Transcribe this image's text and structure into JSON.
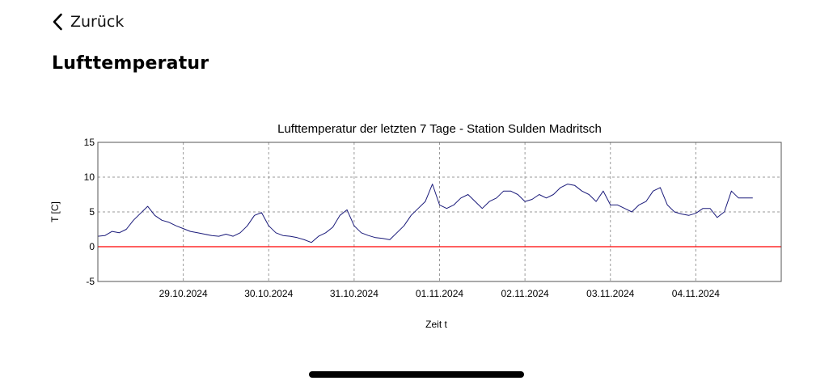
{
  "nav": {
    "back_label": "Zurück"
  },
  "page": {
    "title": "Lufttemperatur"
  },
  "icons": {
    "back": "chevron-left-icon"
  },
  "colors": {
    "series": "#1a1a7a",
    "reference_line": "#ff0000",
    "grid": "#9a9a9a"
  },
  "chart_data": {
    "type": "line",
    "title": "Lufttemperatur der letzten 7 Tage - Station Sulden Madritsch",
    "xlabel": "Zeit t",
    "ylabel": "T [C]",
    "ylim": [
      -5,
      15
    ],
    "yticks": [
      -5,
      0,
      5,
      10,
      15
    ],
    "xlim": [
      "2024-10-28T00:00",
      "2024-11-05T00:00"
    ],
    "xticks": [
      "29.10.2024",
      "30.10.2024",
      "31.10.2024",
      "01.11.2024",
      "02.11.2024",
      "03.11.2024",
      "04.11.2024"
    ],
    "grid": true,
    "reference_line": {
      "y": 0
    },
    "series": [
      {
        "x": [
          "2024-10-28T00:00",
          "2024-10-28T02:00",
          "2024-10-28T04:00",
          "2024-10-28T06:00",
          "2024-10-28T08:00",
          "2024-10-28T10:00",
          "2024-10-28T12:00",
          "2024-10-28T14:00",
          "2024-10-28T16:00",
          "2024-10-28T18:00",
          "2024-10-28T20:00",
          "2024-10-28T22:00",
          "2024-10-29T00:00",
          "2024-10-29T02:00",
          "2024-10-29T04:00",
          "2024-10-29T06:00",
          "2024-10-29T08:00",
          "2024-10-29T10:00",
          "2024-10-29T12:00",
          "2024-10-29T14:00",
          "2024-10-29T16:00",
          "2024-10-29T18:00",
          "2024-10-29T20:00",
          "2024-10-29T22:00",
          "2024-10-30T00:00",
          "2024-10-30T02:00",
          "2024-10-30T04:00",
          "2024-10-30T06:00",
          "2024-10-30T08:00",
          "2024-10-30T10:00",
          "2024-10-30T12:00",
          "2024-10-30T14:00",
          "2024-10-30T16:00",
          "2024-10-30T18:00",
          "2024-10-30T20:00",
          "2024-10-30T22:00",
          "2024-10-31T00:00",
          "2024-10-31T02:00",
          "2024-10-31T04:00",
          "2024-10-31T06:00",
          "2024-10-31T08:00",
          "2024-10-31T10:00",
          "2024-10-31T12:00",
          "2024-10-31T14:00",
          "2024-10-31T16:00",
          "2024-10-31T18:00",
          "2024-10-31T20:00",
          "2024-10-31T22:00",
          "2024-11-01T00:00",
          "2024-11-01T02:00",
          "2024-11-01T04:00",
          "2024-11-01T06:00",
          "2024-11-01T08:00",
          "2024-11-01T10:00",
          "2024-11-01T12:00",
          "2024-11-01T14:00",
          "2024-11-01T16:00",
          "2024-11-01T18:00",
          "2024-11-01T20:00",
          "2024-11-01T22:00",
          "2024-11-02T00:00",
          "2024-11-02T02:00",
          "2024-11-02T04:00",
          "2024-11-02T06:00",
          "2024-11-02T08:00",
          "2024-11-02T10:00",
          "2024-11-02T12:00",
          "2024-11-02T14:00",
          "2024-11-02T16:00",
          "2024-11-02T18:00",
          "2024-11-02T20:00",
          "2024-11-02T22:00",
          "2024-11-03T00:00",
          "2024-11-03T02:00",
          "2024-11-03T04:00",
          "2024-11-03T06:00",
          "2024-11-03T08:00",
          "2024-11-03T10:00",
          "2024-11-03T12:00",
          "2024-11-03T14:00",
          "2024-11-03T16:00",
          "2024-11-03T18:00",
          "2024-11-03T20:00",
          "2024-11-03T22:00",
          "2024-11-04T00:00",
          "2024-11-04T02:00",
          "2024-11-04T04:00",
          "2024-11-04T06:00",
          "2024-11-04T08:00",
          "2024-11-04T10:00",
          "2024-11-04T12:00",
          "2024-11-04T14:00",
          "2024-11-04T16:00"
        ],
        "values": [
          1.5,
          1.6,
          2.2,
          2.0,
          2.5,
          3.8,
          4.8,
          5.8,
          4.5,
          3.8,
          3.5,
          3.0,
          2.6,
          2.2,
          2.0,
          1.8,
          1.6,
          1.5,
          1.8,
          1.5,
          2.0,
          3.0,
          4.5,
          4.9,
          3.0,
          2.0,
          1.6,
          1.5,
          1.3,
          1.0,
          0.6,
          1.5,
          2.0,
          2.8,
          4.5,
          5.3,
          3.0,
          2.0,
          1.6,
          1.3,
          1.2,
          1.0,
          2.0,
          3.0,
          4.5,
          5.5,
          6.5,
          9.0,
          6.0,
          5.5,
          6.0,
          7.0,
          7.5,
          6.5,
          5.5,
          6.5,
          7.0,
          8.0,
          8.0,
          7.5,
          6.5,
          6.8,
          7.5,
          7.0,
          7.5,
          8.5,
          9.0,
          8.8,
          8.0,
          7.5,
          6.5,
          8.0,
          6.0,
          6.0,
          5.5,
          5.0,
          6.0,
          6.5,
          8.0,
          8.5,
          6.0,
          5.0,
          4.7,
          4.5,
          4.8,
          5.5,
          5.5,
          4.2,
          5.0,
          8.0,
          7.0,
          7.0,
          7.0
        ]
      }
    ]
  }
}
